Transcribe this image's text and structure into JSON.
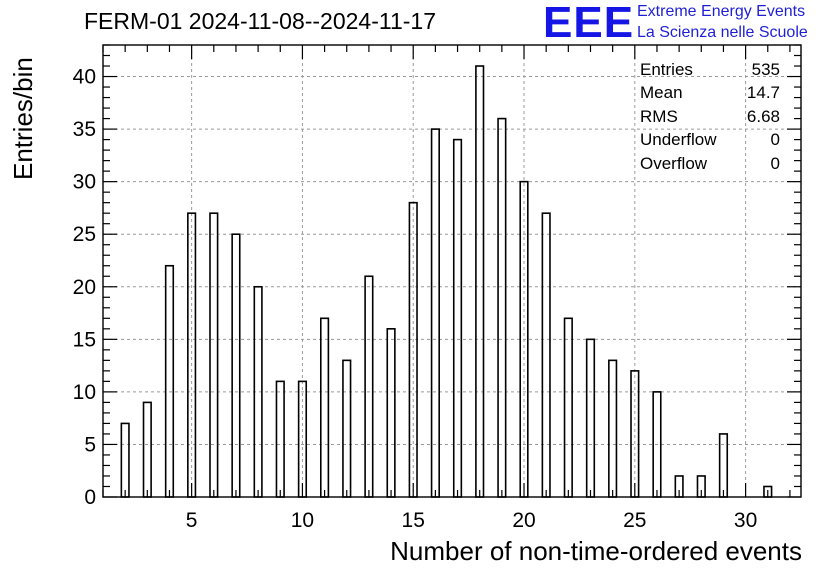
{
  "title": "FERM-01 2024-11-08--2024-11-17",
  "logo": {
    "mark": "EEE",
    "line1": "Extreme Energy Events",
    "line2": "La Scienza nelle Scuole",
    "color": "#1515e6"
  },
  "stats": [
    {
      "label": "Entries",
      "value": "535"
    },
    {
      "label": "Mean",
      "value": "14.7"
    },
    {
      "label": "RMS",
      "value": "6.68"
    },
    {
      "label": "Underflow",
      "value": "0"
    },
    {
      "label": "Overflow",
      "value": "0"
    }
  ],
  "chart_data": {
    "type": "bar",
    "title": "FERM-01 2024-11-08--2024-11-17",
    "xlabel": "Number of non-time-ordered events",
    "ylabel": "Entries/bin",
    "xlim": [
      1,
      32.5
    ],
    "ylim": [
      0,
      43
    ],
    "xticks": [
      5,
      10,
      15,
      20,
      25,
      30
    ],
    "yticks": [
      0,
      5,
      10,
      15,
      20,
      25,
      30,
      35,
      40
    ],
    "grid": true,
    "x": [
      2,
      3,
      4,
      5,
      6,
      7,
      8,
      9,
      10,
      11,
      12,
      13,
      14,
      15,
      16,
      17,
      18,
      19,
      20,
      21,
      22,
      23,
      24,
      25,
      26,
      27,
      28,
      29,
      30,
      31
    ],
    "values": [
      7,
      9,
      22,
      27,
      27,
      25,
      20,
      11,
      11,
      17,
      13,
      21,
      16,
      28,
      35,
      34,
      41,
      36,
      30,
      27,
      17,
      15,
      13,
      12,
      10,
      2,
      2,
      6,
      0,
      1
    ]
  }
}
